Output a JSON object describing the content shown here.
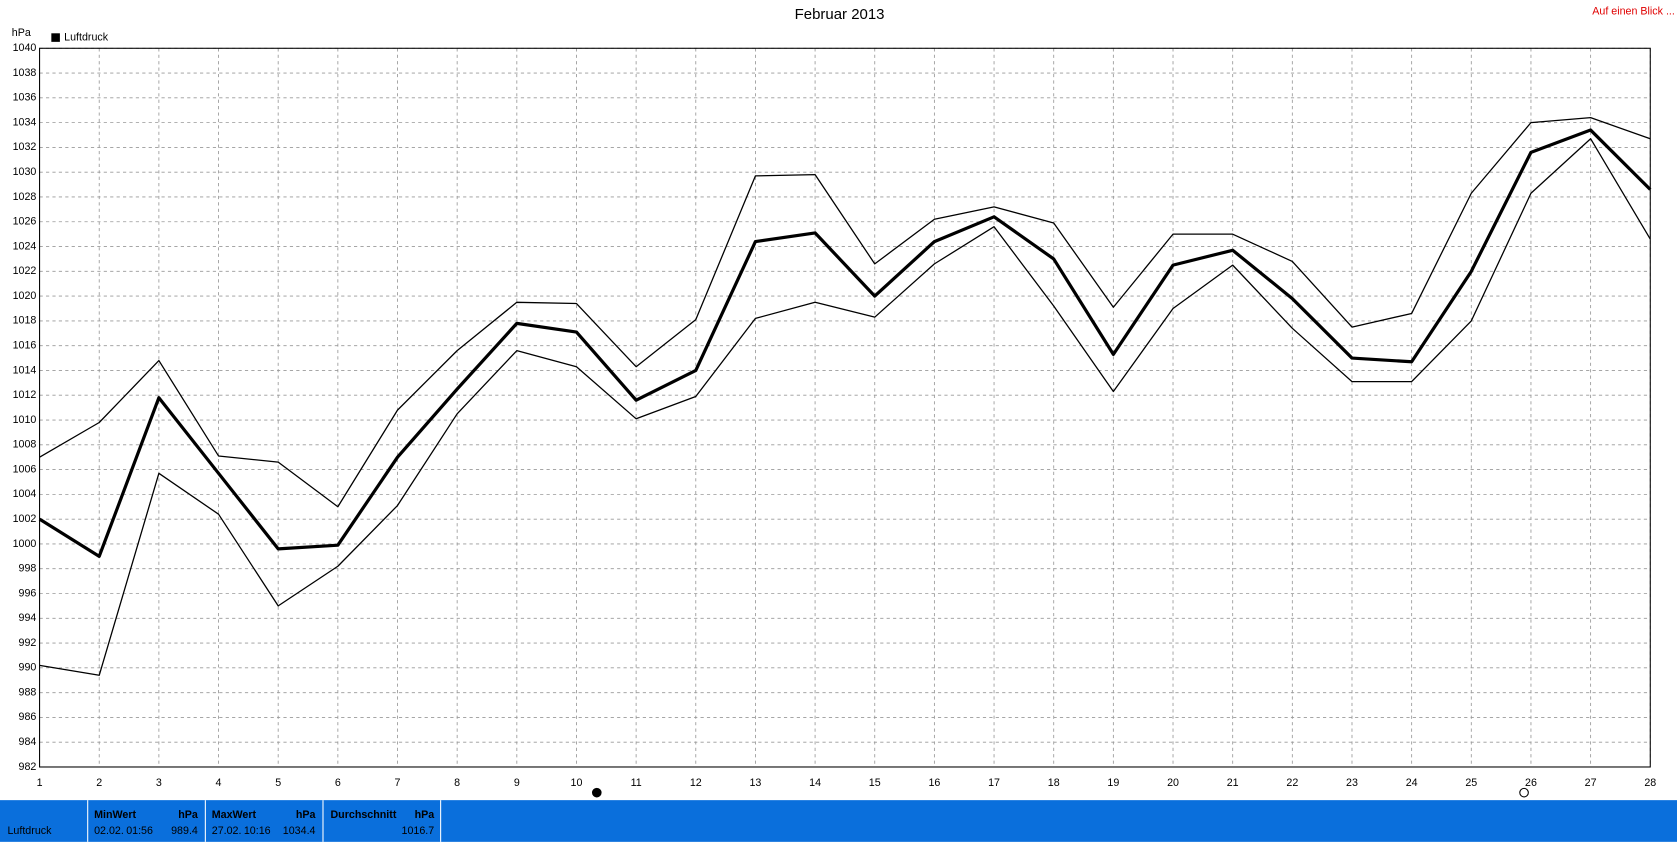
{
  "chart_data": {
    "type": "line",
    "title": "Februar 2013",
    "y_label": "hPa",
    "x": [
      1,
      2,
      3,
      4,
      5,
      6,
      7,
      8,
      9,
      10,
      11,
      12,
      13,
      14,
      15,
      16,
      17,
      18,
      19,
      20,
      21,
      22,
      23,
      24,
      25,
      26,
      27,
      28
    ],
    "xlim": [
      1,
      28
    ],
    "xticks": [
      1,
      2,
      3,
      4,
      5,
      6,
      7,
      8,
      9,
      10,
      11,
      12,
      13,
      14,
      15,
      16,
      17,
      18,
      19,
      20,
      21,
      22,
      23,
      24,
      25,
      26,
      27,
      28
    ],
    "ylim": [
      982,
      1040
    ],
    "yticks": [
      982,
      984,
      986,
      988,
      990,
      992,
      994,
      996,
      998,
      1000,
      1002,
      1004,
      1006,
      1008,
      1010,
      1012,
      1014,
      1016,
      1018,
      1020,
      1022,
      1024,
      1026,
      1028,
      1030,
      1032,
      1034,
      1036,
      1038,
      1040
    ],
    "grid": true,
    "legend": "top-left",
    "series": [
      {
        "color": "#000000",
        "values": [
          1007,
          1009.8,
          1014.8,
          1007.1,
          1006.6,
          1003,
          1010.8,
          1015.6,
          1019.5,
          1019.4,
          1014.3,
          1018.1,
          1029.7,
          1029.8,
          1022.6,
          1026.2,
          1027.2,
          1025.9,
          1019.1,
          1025,
          1025,
          1022.8,
          1017.5,
          1018.6,
          1028.3,
          1034,
          1034.4,
          1032.7
        ]
      },
      {
        "name": "Luftdruck",
        "color": "#000000",
        "values": [
          1002,
          999,
          1011.8,
          1005.7,
          999.6,
          999.9,
          1007,
          1012.5,
          1017.8,
          1017.1,
          1011.6,
          1014,
          1024.4,
          1025.1,
          1020,
          1024.4,
          1026.4,
          1023,
          1015.3,
          1022.5,
          1023.7,
          1019.8,
          1015,
          1014.7,
          1022,
          1031.6,
          1033.4,
          1028.6
        ]
      },
      {
        "color": "#000000",
        "values": [
          990.2,
          989.4,
          1005.7,
          1002.4,
          995,
          998.2,
          1003.1,
          1010.5,
          1015.6,
          1014.3,
          1010.1,
          1011.9,
          1018.2,
          1019.5,
          1018.3,
          1022.6,
          1025.6,
          1019.2,
          1012.3,
          1019,
          1022.5,
          1017.4,
          1013.1,
          1013.1,
          1018,
          1028.3,
          1032.7,
          1024.6
        ]
      }
    ]
  },
  "link": "Auf einen Blick ...",
  "summary": {
    "row_label": "Luftdruck",
    "columns": [
      {
        "header": "MinWert",
        "unit": "hPa",
        "date": "02.02.",
        "time": "01:56",
        "value": 989.4
      },
      {
        "header": "MaxWert",
        "unit": "hPa",
        "date": "27.02.",
        "time": "10:16",
        "value": 1034.4
      },
      {
        "header": "Durchschnitt",
        "unit": "hPa",
        "value": 1016.7
      }
    ]
  }
}
